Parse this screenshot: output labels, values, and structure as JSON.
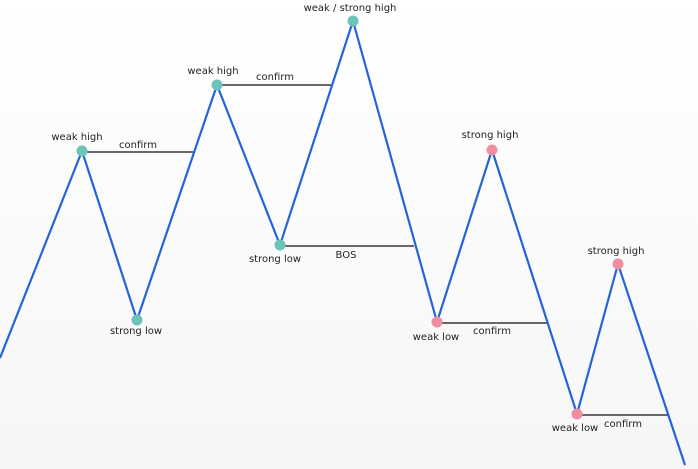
{
  "nodes": [
    {
      "label": "weak high"
    },
    {
      "label": "strong low"
    },
    {
      "label": "weak high"
    },
    {
      "label": "strong low"
    },
    {
      "label": "weak / strong high"
    },
    {
      "label": "weak low"
    },
    {
      "label": "strong high"
    },
    {
      "label": "weak low"
    },
    {
      "label": "strong high"
    }
  ],
  "connectors": [
    {
      "label": "confirm"
    },
    {
      "label": "confirm"
    },
    {
      "label": "BOS"
    },
    {
      "label": "confirm"
    },
    {
      "label": "confirm"
    }
  ]
}
